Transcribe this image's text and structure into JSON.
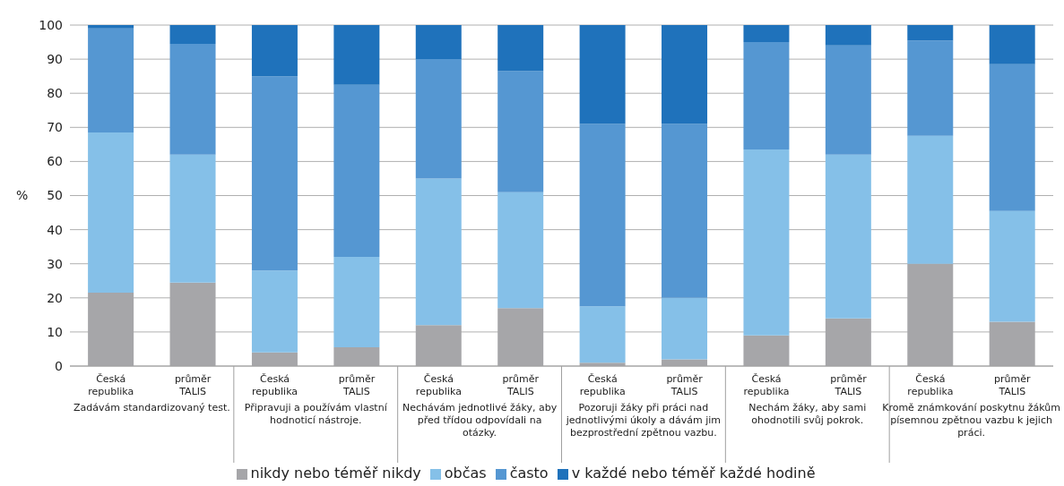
{
  "chart_data": {
    "type": "bar",
    "stacked": true,
    "ylabel": "%",
    "categories": [
      "Česká republika",
      "průměr TALIS",
      "Česká republika",
      "průměr TALIS",
      "Česká republika",
      "průměr TALIS",
      "Česká republika",
      "průměr TALIS",
      "Česká republika",
      "průměr TALIS",
      "Česká republika",
      "průměr TALIS"
    ],
    "series": [
      {
        "name": "nikdy nebo téměř nikdy",
        "color": "#a6a6a9",
        "values": [
          21.5,
          24.5,
          4,
          5.5,
          12,
          17,
          1,
          2,
          9,
          14,
          30,
          13
        ]
      },
      {
        "name": "občas",
        "color": "#85c0e8",
        "values": [
          47,
          37.5,
          24,
          26.5,
          43,
          34,
          16.5,
          18,
          54.5,
          48,
          37.5,
          32.5
        ]
      },
      {
        "name": "často",
        "color": "#5597d2",
        "values": [
          30.5,
          32.5,
          57,
          50.5,
          35,
          35.5,
          53.5,
          51,
          31.5,
          32,
          28,
          43
        ]
      },
      {
        "name": "v každé nebo téměř každé hodině",
        "color": "#1f72bb",
        "values": [
          1,
          5.5,
          15,
          17.5,
          10,
          13.5,
          29,
          29,
          5,
          6,
          4.5,
          11.5
        ]
      }
    ],
    "annotations": [
      "Zadávám standardizovaný test.",
      "Připravuji a používám vlastní hodnoticí nástroje.",
      "Nechávám jednotlivé žáky, aby před třídou odpovídali na otázky.",
      "Pozoruji žáky při práci nad jednotlivými úkoly a dávám jim bezprostřední zpětnou vazbu.",
      "Nechám žáky, aby sami ohodnotili svůj pokrok.",
      "Kromě známkování poskytnu žákům písemnou zpětnou vazbu k jejich práci."
    ],
    "ylim": [
      0,
      100
    ],
    "yticks": [
      0,
      10,
      20,
      30,
      40,
      50,
      60,
      70,
      80,
      90,
      100
    ],
    "grid": "y",
    "legend": "bottom"
  }
}
